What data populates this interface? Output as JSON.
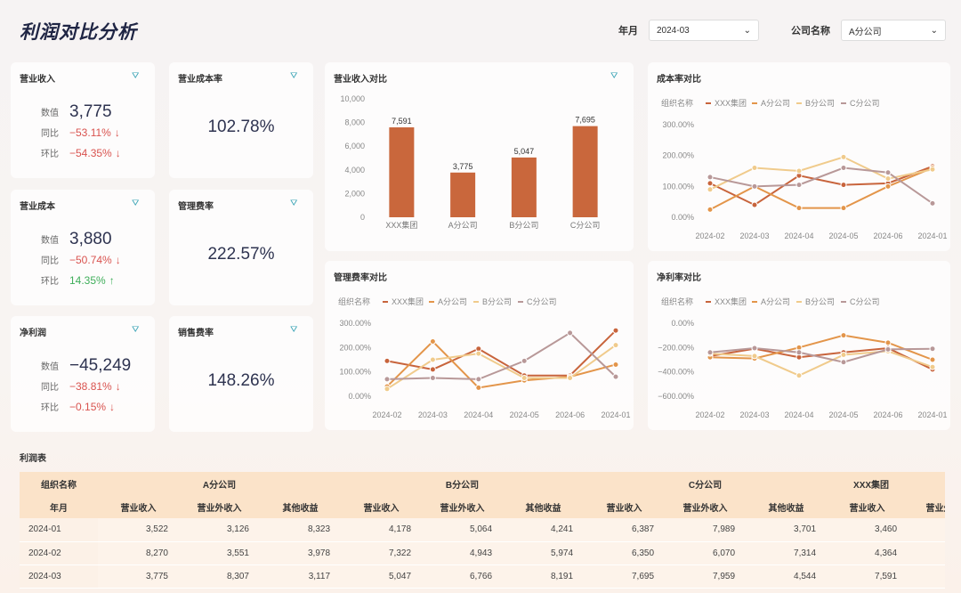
{
  "header": {
    "title": "利润对比分析",
    "filters": [
      {
        "label": "年月",
        "value": "2024-03"
      },
      {
        "label": "公司名称",
        "value": "A分公司"
      }
    ]
  },
  "kpis": [
    {
      "title": "营业收入",
      "rows": [
        {
          "k": "数值",
          "v": "3,775"
        },
        {
          "k": "同比",
          "v": "−53.11%",
          "dir": "down"
        },
        {
          "k": "环比",
          "v": "−54.35%",
          "dir": "down"
        }
      ]
    },
    {
      "title": "营业成本",
      "rows": [
        {
          "k": "数值",
          "v": "3,880"
        },
        {
          "k": "同比",
          "v": "−50.74%",
          "dir": "down"
        },
        {
          "k": "环比",
          "v": "14.35%",
          "dir": "up"
        }
      ]
    },
    {
      "title": "净利润",
      "rows": [
        {
          "k": "数值",
          "v": "−45,249"
        },
        {
          "k": "同比",
          "v": "−38.81%",
          "dir": "down"
        },
        {
          "k": "环比",
          "v": "−0.15%",
          "dir": "down"
        }
      ]
    }
  ],
  "rates": [
    {
      "title": "营业成本率",
      "value": "102.78%"
    },
    {
      "title": "管理费率",
      "value": "222.57%"
    },
    {
      "title": "销售费率",
      "value": "148.26%"
    }
  ],
  "colors": {
    "bar": "#c9673c",
    "XXX集团": "#c8643c",
    "A分公司": "#e3954a",
    "B分公司": "#f0cb8c",
    "C分公司": "#b89898",
    "up": "#3fae5a",
    "down": "#d9534f"
  },
  "chart_data": [
    {
      "type": "bar",
      "title": "营业收入对比",
      "categories": [
        "XXX集团",
        "A分公司",
        "B分公司",
        "C分公司"
      ],
      "values": [
        7591,
        3775,
        5047,
        7695
      ],
      "ylim": [
        0,
        10000
      ],
      "yticks": [
        "0",
        "2,000",
        "4,000",
        "6,000",
        "8,000",
        "10,000"
      ],
      "data_labels": [
        "7,591",
        "3,775",
        "5,047",
        "7,695"
      ]
    },
    {
      "type": "line",
      "title": "成本率对比",
      "legend_title": "组织名称",
      "x": [
        "2024-02",
        "2024-03",
        "2024-04",
        "2024-05",
        "2024-06",
        "2024-01"
      ],
      "yticks": [
        "0.00%",
        "100.00%",
        "200.00%",
        "300.00%"
      ],
      "ylim": [
        0,
        300
      ],
      "series": [
        {
          "name": "XXX集团",
          "values": [
            110,
            40,
            135,
            105,
            110,
            165
          ]
        },
        {
          "name": "A分公司",
          "values": [
            25,
            100,
            30,
            30,
            100,
            160
          ]
        },
        {
          "name": "B分公司",
          "values": [
            90,
            160,
            150,
            195,
            125,
            155
          ]
        },
        {
          "name": "C分公司",
          "values": [
            130,
            100,
            105,
            160,
            145,
            45
          ]
        }
      ]
    },
    {
      "type": "line",
      "title": "管理费率对比",
      "legend_title": "组织名称",
      "x": [
        "2024-02",
        "2024-03",
        "2024-04",
        "2024-05",
        "2024-06",
        "2024-01"
      ],
      "yticks": [
        "0.00%",
        "100.00%",
        "200.00%",
        "300.00%"
      ],
      "ylim": [
        0,
        300
      ],
      "series": [
        {
          "name": "XXX集团",
          "values": [
            145,
            110,
            195,
            85,
            85,
            270
          ]
        },
        {
          "name": "A分公司",
          "values": [
            40,
            225,
            35,
            65,
            80,
            130
          ]
        },
        {
          "name": "B分公司",
          "values": [
            30,
            150,
            175,
            75,
            75,
            210
          ]
        },
        {
          "name": "C分公司",
          "values": [
            70,
            75,
            70,
            145,
            260,
            80
          ]
        }
      ]
    },
    {
      "type": "line",
      "title": "净利率对比",
      "legend_title": "组织名称",
      "x": [
        "2024-02",
        "2024-03",
        "2024-04",
        "2024-05",
        "2024-06",
        "2024-01"
      ],
      "yticks": [
        "−600.00%",
        "−400.00%",
        "−200.00%",
        "0.00%"
      ],
      "ylim": [
        -600,
        0
      ],
      "series": [
        {
          "name": "XXX集团",
          "values": [
            -270,
            -210,
            -280,
            -240,
            -205,
            -380
          ]
        },
        {
          "name": "A分公司",
          "values": [
            -280,
            -290,
            -200,
            -100,
            -160,
            -300
          ]
        },
        {
          "name": "B分公司",
          "values": [
            -250,
            -270,
            -430,
            -260,
            -230,
            -360
          ]
        },
        {
          "name": "C分公司",
          "values": [
            -240,
            -205,
            -240,
            -320,
            -215,
            -210
          ]
        }
      ]
    }
  ],
  "table": {
    "title": "利润表",
    "h1": [
      "组织名称",
      "A分公司",
      "B分公司",
      "C分公司",
      "XXX集团"
    ],
    "h2": [
      "年月",
      "营业收入",
      "营业外收入",
      "其他收益",
      "营业收入",
      "营业外收入",
      "其他收益",
      "营业收入",
      "营业外收入",
      "其他收益",
      "营业收入",
      "营业外收入"
    ],
    "rows": [
      [
        "2024-01",
        "3,522",
        "3,126",
        "8,323",
        "4,178",
        "5,064",
        "4,241",
        "6,387",
        "7,989",
        "3,701",
        "3,460",
        ""
      ],
      [
        "2024-02",
        "8,270",
        "3,551",
        "3,978",
        "7,322",
        "4,943",
        "5,974",
        "6,350",
        "6,070",
        "7,314",
        "4,364",
        ""
      ],
      [
        "2024-03",
        "3,775",
        "8,307",
        "3,117",
        "5,047",
        "6,766",
        "8,191",
        "7,695",
        "7,959",
        "4,544",
        "7,591",
        ""
      ]
    ]
  }
}
